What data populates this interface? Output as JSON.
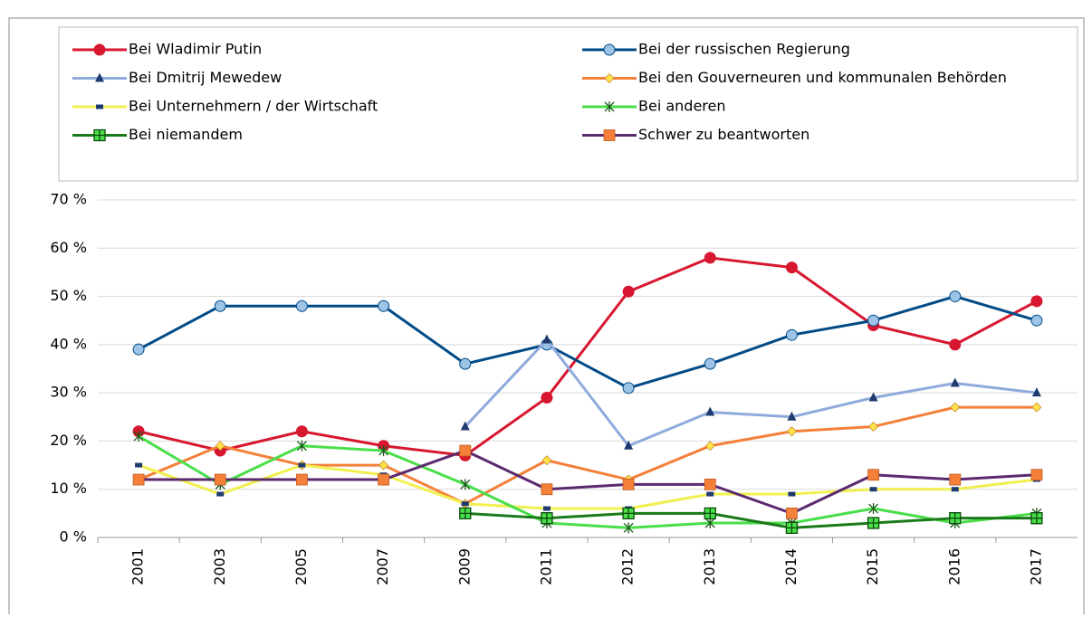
{
  "chart_data": {
    "type": "line",
    "categories": [
      "2001",
      "2003",
      "2005",
      "2007",
      "2009",
      "2011",
      "2012",
      "2013",
      "2014",
      "2015",
      "2016",
      "2017"
    ],
    "ylim": [
      0,
      70
    ],
    "yticks": [
      {
        "value": 0,
        "label": "0 %"
      },
      {
        "value": 10,
        "label": "10 %"
      },
      {
        "value": 20,
        "label": "20 %"
      },
      {
        "value": 30,
        "label": "30 %"
      },
      {
        "value": 40,
        "label": "40 %"
      },
      {
        "value": 50,
        "label": "50 %"
      },
      {
        "value": 60,
        "label": "60 %"
      },
      {
        "value": 70,
        "label": "70 %"
      }
    ],
    "grid": true,
    "series": [
      {
        "name": "Bei Wladimir Putin",
        "color": "#d7172f",
        "marker": "circle",
        "marker_color": "#d7172f",
        "values": [
          22,
          18,
          22,
          19,
          17,
          29,
          51,
          58,
          56,
          44,
          40,
          49
        ]
      },
      {
        "name": "Bei der russischen Regierung",
        "color": "#004b87",
        "marker": "circle",
        "marker_color": "#9dc3e6",
        "values": [
          39,
          48,
          48,
          48,
          36,
          40,
          31,
          36,
          42,
          45,
          50,
          45
        ]
      },
      {
        "name": "Bei Dmitrij Mewedew",
        "color": "#8faadc",
        "marker": "triangle",
        "marker_color": "#1f3a6e",
        "values": [
          null,
          null,
          null,
          null,
          23,
          41,
          19,
          26,
          25,
          29,
          32,
          30
        ]
      },
      {
        "name": "Bei den Gouverneuren und kommunalen Behörden",
        "color": "#f4803a",
        "marker": "diamond",
        "marker_color": "#ffe24a",
        "values": [
          12,
          19,
          15,
          15,
          7,
          16,
          12,
          19,
          22,
          23,
          27,
          27
        ]
      },
      {
        "name": "Bei Unternehmern / der Wirtschaft",
        "color": "#f0f050",
        "marker": "dash",
        "marker_color": "#1f3a6e",
        "values": [
          15,
          9,
          15,
          13,
          7,
          6,
          6,
          9,
          9,
          10,
          10,
          12
        ]
      },
      {
        "name": "Bei anderen",
        "color": "#4ade4a",
        "marker": "star",
        "marker_color": "#1a5a1a",
        "values": [
          21,
          11,
          19,
          18,
          11,
          3,
          2,
          3,
          3,
          6,
          3,
          5
        ]
      },
      {
        "name": "Bei niemandem",
        "color": "#1a7a1a",
        "marker": "plus",
        "marker_color": "#4ade4a",
        "values": [
          null,
          null,
          null,
          null,
          5,
          4,
          5,
          5,
          2,
          3,
          4,
          4
        ]
      },
      {
        "name": "Schwer zu beantworten",
        "color": "#5b2a6e",
        "marker": "square",
        "marker_color": "#f4803a",
        "values": [
          12,
          12,
          12,
          12,
          18,
          10,
          11,
          11,
          5,
          13,
          12,
          13
        ]
      }
    ],
    "legend": "top"
  }
}
